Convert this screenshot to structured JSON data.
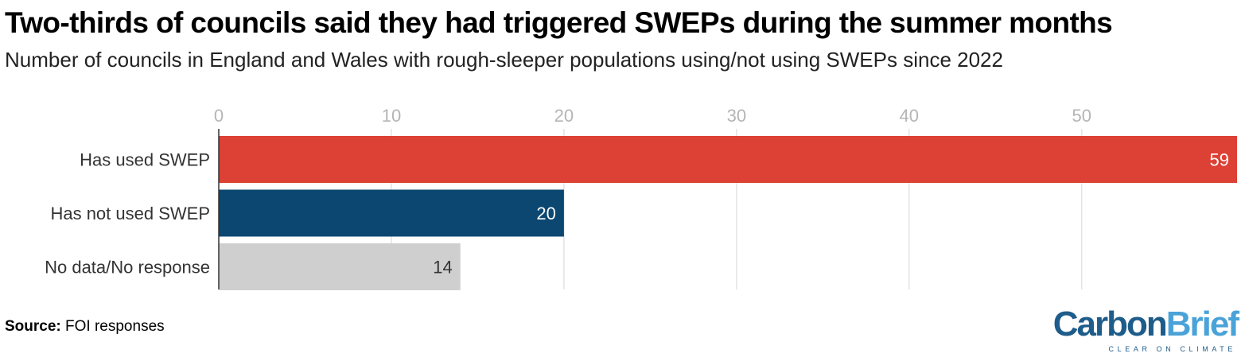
{
  "title": "Two-thirds of councils said they had triggered SWEPs during the summer months",
  "subtitle": "Number of councils in England and Wales with rough-sleeper populations using/not using SWEPs since 2022",
  "source": {
    "label": "Source:",
    "text": "FOI responses"
  },
  "logo": {
    "part1": "Carbon",
    "part2": "Brief",
    "tagline": "CLEAR ON CLIMATE"
  },
  "chart_data": {
    "type": "bar",
    "orientation": "horizontal",
    "categories": [
      "Has used SWEP",
      "Has not used SWEP",
      "No data/No response"
    ],
    "values": [
      59,
      20,
      14
    ],
    "colors": [
      "#dd4034",
      "#0b4770",
      "#cfcfcf"
    ],
    "label_colors": [
      "#ffffff",
      "#ffffff",
      "#333333"
    ],
    "xlim": [
      0,
      59
    ],
    "xticks": [
      0,
      10,
      20,
      30,
      40,
      50
    ],
    "grid": true
  }
}
